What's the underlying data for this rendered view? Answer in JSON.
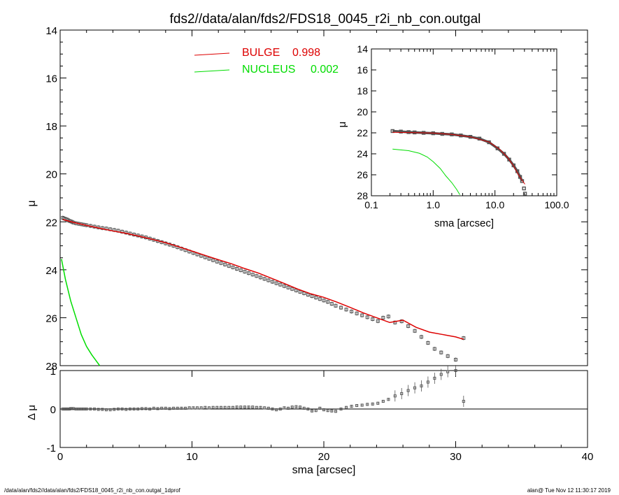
{
  "title": "fds2//data/alan/fds2/FDS18_0045_r2i_nb_con.outgal",
  "footer": {
    "path": "/data/alan/fds2//data/alan/fds2/FDS18_0045_r2i_nb_con.outgal_1dprof",
    "user_time": "alan@  Tue Nov 12 11:30:17 2019"
  },
  "colors": {
    "data": "#555555",
    "bulge": "#dd0000",
    "nucleus": "#00dd00",
    "axis": "#000000"
  },
  "chart_data": [
    {
      "type": "scatter",
      "name": "main-profile",
      "xlabel": "sma [arcsec]",
      "ylabel": "μ",
      "xlim": [
        0,
        40
      ],
      "ylim": [
        28,
        14
      ],
      "x_ticks": [
        "0",
        "10",
        "20",
        "30",
        "40"
      ],
      "y_ticks": [
        "14",
        "16",
        "18",
        "20",
        "22",
        "24",
        "26",
        "28"
      ],
      "legend": [
        {
          "label": "BULGE",
          "value": "0.998",
          "color": "#dd0000"
        },
        {
          "label": "NUCLEUS",
          "value": "0.002",
          "color": "#00dd00"
        }
      ],
      "legend_position": "top-center",
      "observed": {
        "x": [
          0.2,
          0.3,
          0.4,
          0.5,
          0.6,
          0.7,
          0.8,
          0.9,
          1.0,
          1.2,
          1.4,
          1.6,
          1.8,
          2.0,
          2.3,
          2.6,
          2.9,
          3.2,
          3.5,
          3.8,
          4.1,
          4.4,
          4.7,
          5.0,
          5.3,
          5.6,
          5.9,
          6.2,
          6.5,
          6.8,
          7.1,
          7.4,
          7.7,
          8.0,
          8.3,
          8.6,
          8.9,
          9.2,
          9.5,
          9.8,
          10.1,
          10.4,
          10.7,
          11.0,
          11.3,
          11.6,
          11.9,
          12.2,
          12.5,
          12.8,
          13.1,
          13.4,
          13.7,
          14.0,
          14.3,
          14.6,
          14.9,
          15.2,
          15.5,
          15.8,
          16.1,
          16.4,
          16.7,
          17.0,
          17.3,
          17.6,
          17.9,
          18.2,
          18.5,
          18.8,
          19.1,
          19.4,
          19.7,
          20.0,
          20.3,
          20.6,
          20.9,
          21.3,
          21.7,
          22.1,
          22.5,
          22.9,
          23.3,
          23.7,
          24.1,
          24.5,
          24.9,
          25.4,
          25.9,
          26.4,
          26.9,
          27.4,
          27.9,
          28.4,
          28.9,
          29.4,
          30.0,
          30.6
        ],
        "y": [
          21.83,
          21.86,
          21.88,
          21.9,
          21.93,
          21.96,
          21.98,
          22.0,
          22.03,
          22.06,
          22.08,
          22.1,
          22.12,
          22.14,
          22.17,
          22.2,
          22.23,
          22.26,
          22.28,
          22.31,
          22.34,
          22.37,
          22.41,
          22.45,
          22.49,
          22.53,
          22.57,
          22.61,
          22.65,
          22.7,
          22.75,
          22.8,
          22.85,
          22.9,
          22.95,
          23.0,
          23.06,
          23.12,
          23.18,
          23.24,
          23.3,
          23.36,
          23.42,
          23.48,
          23.54,
          23.6,
          23.66,
          23.72,
          23.78,
          23.84,
          23.9,
          23.96,
          24.02,
          24.08,
          24.14,
          24.2,
          24.26,
          24.32,
          24.38,
          24.44,
          24.5,
          24.56,
          24.62,
          24.68,
          24.74,
          24.8,
          24.86,
          24.92,
          24.98,
          25.04,
          25.1,
          25.16,
          25.22,
          25.28,
          25.34,
          25.42,
          25.5,
          25.58,
          25.66,
          25.74,
          25.82,
          25.9,
          25.98,
          26.06,
          26.14,
          26.0,
          25.95,
          26.2,
          26.15,
          26.35,
          26.55,
          26.8,
          27.05,
          27.3,
          27.45,
          27.6,
          27.75,
          26.85
        ],
        "residual": [
          0.0,
          0.0,
          0.0,
          0.0,
          0.0,
          0.0,
          0.01,
          0.01,
          0.01,
          0.0,
          0.0,
          0.0,
          0.0,
          0.0,
          0.0,
          0.0,
          -0.01,
          -0.01,
          -0.02,
          -0.02,
          -0.01,
          0.0,
          0.0,
          -0.01,
          0.0,
          0.0,
          0.0,
          0.01,
          0.01,
          0.0,
          0.02,
          0.01,
          0.02,
          0.02,
          0.01,
          0.02,
          0.02,
          0.02,
          0.02,
          0.03,
          0.03,
          0.03,
          0.03,
          0.04,
          0.03,
          0.04,
          0.04,
          0.04,
          0.04,
          0.04,
          0.04,
          0.05,
          0.05,
          0.05,
          0.05,
          0.05,
          0.04,
          0.04,
          0.03,
          0.02,
          0.0,
          -0.02,
          0.0,
          0.03,
          0.02,
          0.05,
          0.06,
          0.05,
          0.02,
          0.0,
          -0.05,
          -0.04,
          0.02,
          -0.02,
          -0.04,
          -0.05,
          -0.06,
          0.0,
          0.04,
          0.07,
          0.09,
          0.1,
          0.12,
          0.13,
          0.15,
          0.2,
          0.25,
          0.34,
          0.4,
          0.48,
          0.55,
          0.6,
          0.7,
          0.8,
          0.9,
          0.97,
          1.0,
          0.2
        ]
      },
      "bulge_model": {
        "x": [
          0.2,
          1.0,
          2.0,
          3.0,
          4.0,
          5.0,
          6.0,
          7.0,
          8.0,
          9.0,
          10.0,
          11.0,
          12.0,
          13.0,
          14.0,
          15.0,
          16.0,
          17.0,
          18.0,
          19.0,
          20.0,
          21.0,
          22.0,
          23.0,
          24.0,
          25.0,
          26.0,
          27.0,
          28.0,
          29.0,
          30.0,
          30.6
        ],
        "y": [
          21.9,
          22.02,
          22.15,
          22.27,
          22.38,
          22.48,
          22.6,
          22.73,
          22.87,
          23.04,
          23.22,
          23.4,
          23.58,
          23.75,
          23.95,
          24.13,
          24.35,
          24.57,
          24.8,
          25.0,
          25.15,
          25.35,
          25.57,
          25.8,
          26.0,
          26.2,
          26.1,
          26.4,
          26.6,
          26.7,
          26.8,
          26.9
        ]
      },
      "nucleus_model": {
        "x": [
          0.1,
          0.4,
          0.8,
          1.2,
          1.6,
          2.0,
          2.4,
          2.8,
          3.0
        ],
        "y": [
          23.55,
          24.4,
          25.3,
          26.0,
          26.7,
          27.2,
          27.55,
          27.85,
          28.0
        ]
      }
    },
    {
      "type": "scatter",
      "name": "inset-log-profile",
      "xlabel": "sma [arcsec]",
      "ylabel": "μ",
      "xscale": "log",
      "xlim": [
        0.1,
        100.0
      ],
      "ylim": [
        28,
        14
      ],
      "x_ticks": [
        "0.1",
        "1.0",
        "10.0",
        "100.0"
      ],
      "y_ticks": [
        "14",
        "16",
        "18",
        "20",
        "22",
        "24",
        "26",
        "28"
      ],
      "observed": {
        "x": [
          0.22,
          0.3,
          0.4,
          0.5,
          0.7,
          1.0,
          1.4,
          2.0,
          2.8,
          4.0,
          5.6,
          8.0,
          11.0,
          14.0,
          17.0,
          20.0,
          23.0,
          25.5,
          27.5,
          29.5,
          30.6
        ],
        "y": [
          21.83,
          21.88,
          21.93,
          21.96,
          22.0,
          22.04,
          22.1,
          22.15,
          22.25,
          22.38,
          22.55,
          22.9,
          23.48,
          24.0,
          24.55,
          25.1,
          25.66,
          26.2,
          26.6,
          27.3,
          27.8
        ]
      },
      "bulge_model": {
        "x": [
          0.22,
          0.5,
          1.0,
          2.0,
          4.0,
          8.0,
          12.0,
          16.0,
          20.0,
          24.0,
          28.0,
          30.6
        ],
        "y": [
          21.95,
          21.98,
          22.02,
          22.15,
          22.38,
          22.87,
          23.58,
          24.35,
          25.15,
          26.0,
          26.6,
          26.9
        ]
      },
      "nucleus_model": {
        "x": [
          0.22,
          0.4,
          0.6,
          0.8,
          1.0,
          1.3,
          1.6,
          2.0,
          2.4,
          2.7
        ],
        "y": [
          23.55,
          23.7,
          23.95,
          24.3,
          24.75,
          25.4,
          26.1,
          26.75,
          27.4,
          27.9
        ]
      }
    },
    {
      "type": "scatter",
      "name": "residual-panel",
      "ylabel": "Δ μ",
      "xlim": [
        0,
        40
      ],
      "ylim": [
        -1,
        1
      ],
      "y_ticks": [
        "1",
        "0",
        "-1"
      ],
      "zero_line": true
    }
  ]
}
